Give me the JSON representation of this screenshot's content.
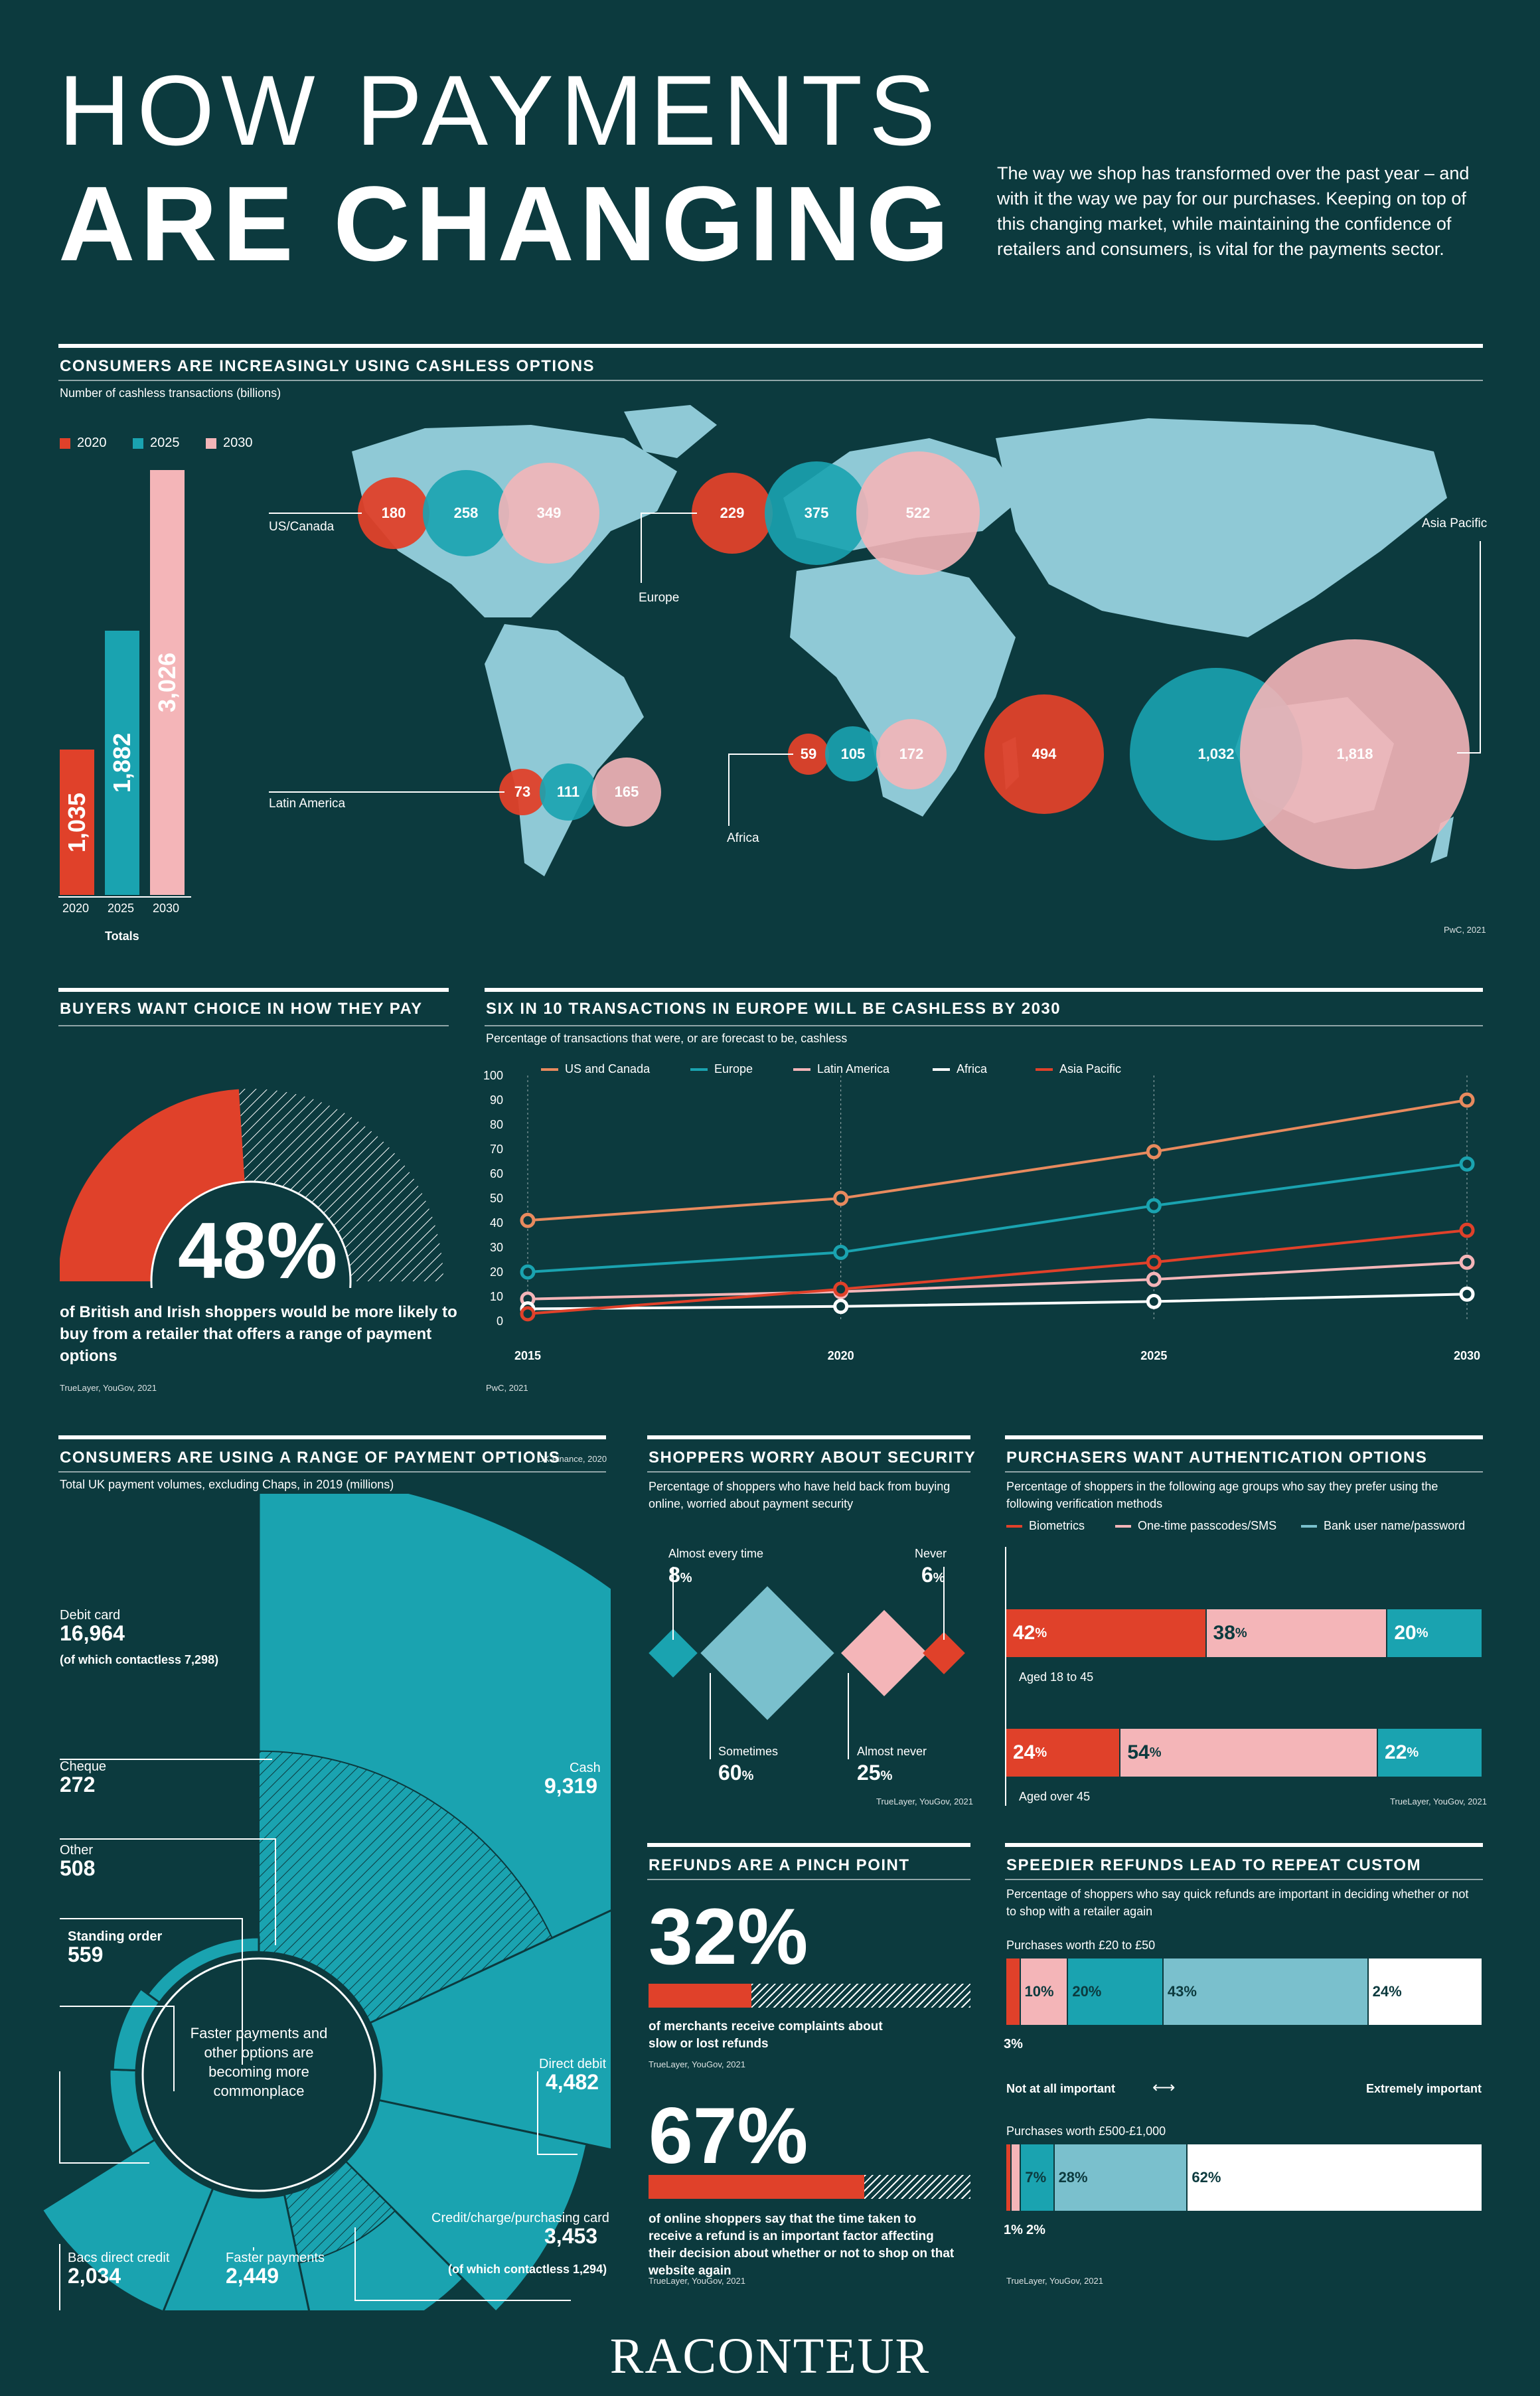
{
  "header": {
    "title_line1": "HOW PAYMENTS",
    "title_line2": "ARE CHANGING",
    "intro": "The way we shop has transformed over the past year – and with it the way we pay for our purchases. Keeping on top of this changing market, while maintaining the confidence of retailers and consumers, is vital for the payments sector."
  },
  "colors": {
    "bg": "#0c3a3e",
    "red": "#e0412a",
    "teal": "#1aa3b0",
    "pink": "#f4b5b8",
    "lightblue": "#7ac0cd",
    "orange": "#e88a5e",
    "white": "#ffffff"
  },
  "cashless": {
    "title": "CONSUMERS ARE INCREASINGLY USING CASHLESS OPTIONS",
    "subtitle": "Number of cashless transactions (billions)",
    "legend": [
      "2020",
      "2025",
      "2030"
    ],
    "totals_label": "Totals",
    "source": "PwC, 2021",
    "regions": [
      {
        "name": "US/Canada",
        "values": [
          "180",
          "258",
          "349"
        ]
      },
      {
        "name": "Europe",
        "values": [
          "229",
          "375",
          "522"
        ]
      },
      {
        "name": "Latin America",
        "values": [
          "73",
          "111",
          "165"
        ]
      },
      {
        "name": "Africa",
        "values": [
          "59",
          "105",
          "172"
        ]
      },
      {
        "name": "Asia Pacific",
        "values": [
          "494",
          "1,032",
          "1,818"
        ]
      }
    ]
  },
  "chart_data": [
    {
      "type": "bar",
      "categories": [
        "2020",
        "2025",
        "2030"
      ],
      "values": [
        1035,
        1882,
        3026
      ],
      "labels": [
        "1,035",
        "1,882",
        "3,026"
      ],
      "xlabel": "Totals"
    },
    {
      "type": "line",
      "title": "SIX IN 10 TRANSACTIONS IN EUROPE WILL BE CASHLESS BY 2030",
      "subtitle": "Percentage of transactions that were, or are forecast to be, cashless",
      "x": [
        2015,
        2020,
        2025,
        2030
      ],
      "ylim": [
        0,
        100
      ],
      "yticks": [
        0,
        10,
        20,
        30,
        40,
        50,
        60,
        70,
        80,
        90,
        100
      ],
      "series": [
        {
          "name": "US and Canada",
          "values": [
            41,
            50,
            69,
            90
          ],
          "color": "#e88a5e"
        },
        {
          "name": "Europe",
          "values": [
            20,
            28,
            47,
            64
          ],
          "color": "#1aa3b0"
        },
        {
          "name": "Latin America",
          "values": [
            9,
            12,
            17,
            24
          ],
          "color": "#f4b5b8"
        },
        {
          "name": "Africa",
          "values": [
            5,
            6,
            8,
            11
          ],
          "color": "#ffffff"
        },
        {
          "name": "Asia Pacific",
          "values": [
            3,
            13,
            24,
            37
          ],
          "color": "#e0412a"
        }
      ],
      "source": "PwC, 2021"
    },
    {
      "type": "pie",
      "title": "CONSUMERS ARE USING A RANGE OF PAYMENT OPTIONS",
      "subtitle": "Total UK payment volumes, excluding Chaps, in 2019 (millions)",
      "categories": [
        "Debit card",
        "Cash",
        "Direct debit",
        "Credit/charge/purchasing card",
        "Faster payments",
        "Bacs direct credit",
        "Standing order",
        "Other",
        "Cheque"
      ],
      "values": [
        16964,
        9319,
        4482,
        3453,
        2449,
        2034,
        559,
        508,
        272
      ]
    }
  ],
  "choice": {
    "title": "BUYERS WANT CHOICE IN HOW THEY PAY",
    "percent": "48%",
    "value": 48,
    "text": "of British and Irish shoppers would be more likely to buy from a retailer that offers a range of payment options",
    "source": "TrueLayer, YouGov, 2021"
  },
  "options": {
    "source": "UK Finance, 2020",
    "center": "Faster payments and other options are becoming more commonplace",
    "items": [
      {
        "name": "Debit card",
        "value": "16,964",
        "note": "(of which contactless 7,298)"
      },
      {
        "name": "Cash",
        "value": "9,319"
      },
      {
        "name": "Direct debit",
        "value": "4,482"
      },
      {
        "name": "Credit/charge/purchasing card",
        "value": "3,453",
        "note": "(of which contactless 1,294)"
      },
      {
        "name": "Faster payments",
        "value": "2,449"
      },
      {
        "name": "Bacs direct credit",
        "value": "2,034"
      },
      {
        "name": "Standing order",
        "value": "559"
      },
      {
        "name": "Other",
        "value": "508"
      },
      {
        "name": "Cheque",
        "value": "272"
      }
    ]
  },
  "security": {
    "title": "SHOPPERS WORRY ABOUT SECURITY",
    "subtitle": "Percentage of shoppers who have held back from buying online, worried about payment security",
    "items": [
      {
        "name": "Almost every time",
        "value": "8",
        "unit": "%"
      },
      {
        "name": "Sometimes",
        "value": "60",
        "unit": "%"
      },
      {
        "name": "Almost never",
        "value": "25",
        "unit": "%"
      },
      {
        "name": "Never",
        "value": "6",
        "unit": "%"
      }
    ],
    "source": "TrueLayer, YouGov, 2021"
  },
  "auth": {
    "title": "PURCHASERS WANT AUTHENTICATION OPTIONS",
    "subtitle": "Percentage of shoppers in the following age groups who say they prefer using the following verification methods",
    "legend": [
      "Biometrics",
      "One-time passcodes/SMS",
      "Bank user name/password"
    ],
    "groups": [
      {
        "name": "Aged 18 to 45",
        "values": [
          42,
          38,
          20
        ],
        "labels": [
          "42",
          "38",
          "20"
        ]
      },
      {
        "name": "Aged over 45",
        "values": [
          24,
          54,
          22
        ],
        "labels": [
          "24",
          "54",
          "22"
        ]
      }
    ],
    "unit": "%",
    "source": "TrueLayer, YouGov, 2021"
  },
  "refunds": {
    "title": "REFUNDS ARE A PINCH POINT",
    "items": [
      {
        "percent": "32%",
        "value": 32,
        "text": "of merchants receive complaints about slow or lost refunds",
        "source": "TrueLayer, YouGov, 2021"
      },
      {
        "percent": "67%",
        "value": 67,
        "text": "of online shoppers say that the time taken to receive a refund is an important factor affecting their decision about whether or not to shop on that website again",
        "source": "TrueLayer, YouGov, 2021"
      }
    ]
  },
  "speedier": {
    "title": "SPEEDIER REFUNDS LEAD TO REPEAT CUSTOM",
    "subtitle": "Percentage of shoppers who say quick refunds are important in deciding whether or not to shop with a retailer again",
    "scale_left": "Not at all important",
    "scale_right": "Extremely important",
    "groups": [
      {
        "name": "Purchases worth £20 to £50",
        "values": [
          3,
          10,
          20,
          43,
          24
        ],
        "labels": [
          "3%",
          "10%",
          "20%",
          "43%",
          "24%"
        ]
      },
      {
        "name": "Purchases worth £500-£1,000",
        "values": [
          1,
          2,
          7,
          28,
          62
        ],
        "labels": [
          "1%",
          "2%",
          "7%",
          "28%",
          "62%"
        ]
      }
    ],
    "source": "TrueLayer, YouGov, 2021"
  },
  "footer": {
    "brand": "RACONTEUR"
  }
}
